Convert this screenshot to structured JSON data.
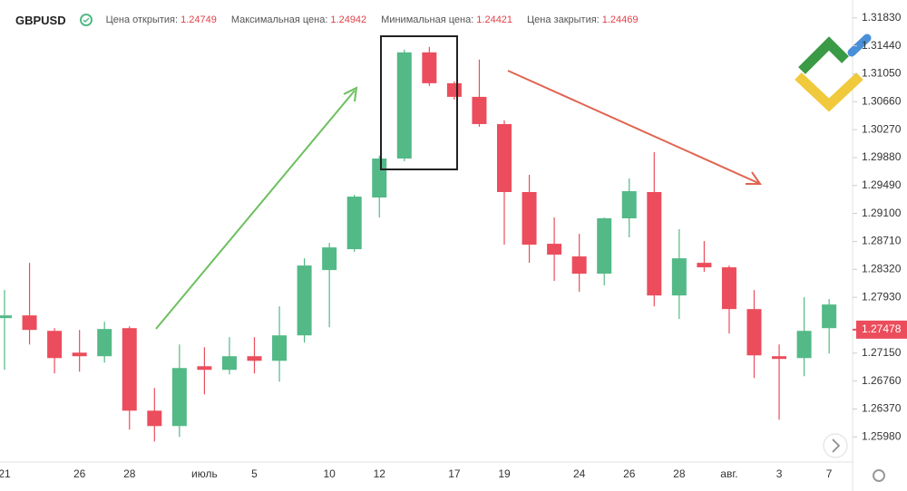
{
  "chart_data": {
    "type": "candlestick",
    "symbol": "GBPUSD",
    "info": [
      {
        "label": "Цена открытия:",
        "value": 1.24749
      },
      {
        "label": "Максимальная цена:",
        "value": 1.24942
      },
      {
        "label": "Минимальная цена:",
        "value": 1.24421
      },
      {
        "label": "Цена закрытия:",
        "value": 1.24469
      }
    ],
    "categories": [
      "21",
      null,
      null,
      "26",
      null,
      "28",
      null,
      null,
      "июль",
      null,
      "5",
      null,
      null,
      "10",
      null,
      "12",
      null,
      null,
      "17",
      null,
      "19",
      null,
      null,
      "24",
      null,
      "26",
      null,
      "28",
      null,
      "авг.",
      null,
      "3",
      null,
      "7"
    ],
    "open": [
      1.27639,
      1.27677,
      1.27461,
      1.27157,
      1.27107,
      1.27499,
      1.26347,
      1.26132,
      1.26967,
      1.26917,
      1.27107,
      1.27043,
      1.27398,
      1.2831,
      1.28601,
      1.29323,
      1.29867,
      1.31349,
      1.30918,
      1.30728,
      1.30348,
      1.29399,
      1.28677,
      1.285,
      1.28259,
      1.29032,
      1.29399,
      1.27955,
      1.28411,
      1.28348,
      1.27765,
      1.27107,
      1.27081,
      1.27499
    ],
    "high": [
      1.28031,
      1.28411,
      1.27499,
      1.27474,
      1.27588,
      1.27525,
      1.26663,
      1.27271,
      1.27233,
      1.27373,
      1.27373,
      1.27803,
      1.28474,
      1.2869,
      1.29361,
      1.29905,
      1.31387,
      1.31425,
      1.30944,
      1.31248,
      1.30399,
      1.29639,
      1.29044,
      1.28816,
      1.29044,
      1.29589,
      1.29956,
      1.2888,
      1.28715,
      1.28373,
      1.28031,
      1.27271,
      1.2793,
      1.27905
    ],
    "low": [
      1.26917,
      1.27271,
      1.26866,
      1.26891,
      1.27018,
      1.26081,
      1.25916,
      1.2598,
      1.26575,
      1.26853,
      1.26866,
      1.26752,
      1.27297,
      1.27512,
      1.28563,
      1.29044,
      1.29829,
      1.3088,
      1.3069,
      1.3031,
      1.28664,
      1.28411,
      1.28158,
      1.28006,
      1.28094,
      1.28766,
      1.27803,
      1.27626,
      1.28284,
      1.27423,
      1.26803,
      1.2622,
      1.26828,
      1.27145
    ],
    "close": [
      1.27677,
      1.27474,
      1.27081,
      1.27107,
      1.27487,
      1.26347,
      1.26132,
      1.26942,
      1.26917,
      1.27107,
      1.27043,
      1.27398,
      1.28373,
      1.28626,
      1.29335,
      1.29867,
      1.31349,
      1.30918,
      1.30728,
      1.30348,
      1.29399,
      1.28664,
      1.28525,
      1.28259,
      1.29032,
      1.29411,
      1.27955,
      1.28474,
      1.28348,
      1.27765,
      1.27119,
      1.27069,
      1.27461,
      1.27829
    ],
    "up_color": "#53b987",
    "down_color": "#eb4d5c",
    "ylim": [
      1.2563,
      1.3208
    ],
    "yticks": [
      {
        "value": 1.3183,
        "label": "1.31830"
      },
      {
        "value": 1.3144,
        "label": "1.31440"
      },
      {
        "value": 1.3105,
        "label": "1.31050"
      },
      {
        "value": 1.3066,
        "label": "1.30660"
      },
      {
        "value": 1.3027,
        "label": "1.30270"
      },
      {
        "value": 1.2988,
        "label": "1.29880"
      },
      {
        "value": 1.2949,
        "label": "1.29490"
      },
      {
        "value": 1.291,
        "label": "1.29100"
      },
      {
        "value": 1.2871,
        "label": "1.28710"
      },
      {
        "value": 1.2832,
        "label": "1.28320"
      },
      {
        "value": 1.2793,
        "label": "1.27930"
      },
      {
        "value": 1.2715,
        "label": "1.27150"
      },
      {
        "value": 1.2676,
        "label": "1.26760"
      },
      {
        "value": 1.2637,
        "label": "1.26370"
      },
      {
        "value": 1.2598,
        "label": "1.25980"
      }
    ],
    "last_price": 1.27478,
    "grid": false
  }
}
